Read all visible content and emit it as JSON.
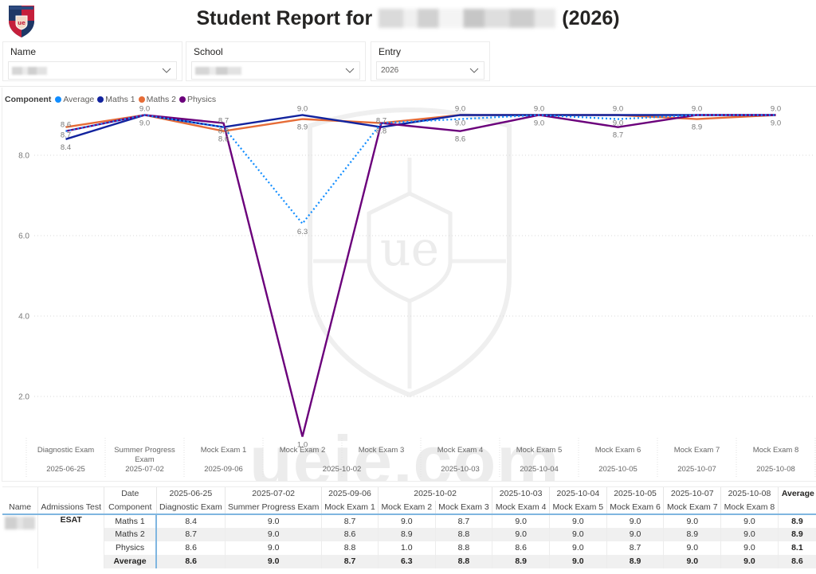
{
  "header": {
    "title_prefix": "Student Report for",
    "title_name_redacted": true,
    "title_suffix": "(2026)"
  },
  "filters": [
    {
      "label": "Name",
      "value": "",
      "redacted": true
    },
    {
      "label": "School",
      "value": "",
      "redacted": true
    },
    {
      "label": "Entry",
      "value": "2026",
      "redacted": false
    }
  ],
  "legend": {
    "title": "Component",
    "items": [
      {
        "label": "Average",
        "color": "#118DFF"
      },
      {
        "label": "Maths 1",
        "color": "#12239E"
      },
      {
        "label": "Maths 2",
        "color": "#E66C37"
      },
      {
        "label": "Physics",
        "color": "#6B007B"
      }
    ]
  },
  "chart_data": {
    "type": "line",
    "title": "",
    "xlabel": "",
    "ylabel": "",
    "legend_title": "Component",
    "legend_position": "top-left",
    "grid": true,
    "ylim": [
      1,
      9
    ],
    "y_ticks": [
      8.0,
      6.0,
      4.0,
      2.0
    ],
    "categories": [
      "Diagnostic Exam",
      "Summer Progress Exam",
      "Mock Exam 1",
      "Mock Exam 2",
      "Mock Exam 3",
      "Mock Exam 4",
      "Mock Exam 5",
      "Mock Exam 6",
      "Mock Exam 7",
      "Mock Exam 8"
    ],
    "date_groups": [
      {
        "date": "2025-06-25",
        "span": 1
      },
      {
        "date": "2025-07-02",
        "span": 1
      },
      {
        "date": "2025-09-06",
        "span": 1
      },
      {
        "date": "2025-10-02",
        "span": 2
      },
      {
        "date": "2025-10-03",
        "span": 1
      },
      {
        "date": "2025-10-04",
        "span": 1
      },
      {
        "date": "2025-10-05",
        "span": 1
      },
      {
        "date": "2025-10-07",
        "span": 1
      },
      {
        "date": "2025-10-08",
        "span": 1
      }
    ],
    "series": [
      {
        "name": "Maths 2",
        "color": "#E66C37",
        "style": "solid",
        "values": [
          8.7,
          9.0,
          8.6,
          8.9,
          8.8,
          9.0,
          9.0,
          9.0,
          8.9,
          9.0
        ]
      },
      {
        "name": "Maths 1",
        "color": "#12239E",
        "style": "solid",
        "values": [
          8.4,
          9.0,
          8.7,
          9.0,
          8.7,
          9.0,
          9.0,
          9.0,
          9.0,
          9.0
        ]
      },
      {
        "name": "Physics",
        "color": "#6B007B",
        "style": "solid",
        "values": [
          8.6,
          9.0,
          8.8,
          1.0,
          8.8,
          8.6,
          9.0,
          8.7,
          9.0,
          9.0
        ]
      },
      {
        "name": "Average",
        "color": "#118DFF",
        "style": "dotted",
        "values": [
          8.6,
          9.0,
          8.7,
          6.3,
          8.8,
          8.9,
          9.0,
          8.9,
          9.0,
          9.0
        ]
      }
    ]
  },
  "table": {
    "headers": {
      "name": "Name",
      "admissions_test": "Admissions Test",
      "date": "Date",
      "component": "Component",
      "average": "Average",
      "date_groups": [
        {
          "date": "2025-06-25",
          "span": 1
        },
        {
          "date": "2025-07-02",
          "span": 1
        },
        {
          "date": "2025-09-06",
          "span": 1
        },
        {
          "date": "2025-10-02",
          "span": 2
        },
        {
          "date": "2025-10-03",
          "span": 1
        },
        {
          "date": "2025-10-04",
          "span": 1
        },
        {
          "date": "2025-10-05",
          "span": 1
        },
        {
          "date": "2025-10-07",
          "span": 1
        },
        {
          "date": "2025-10-08",
          "span": 1
        }
      ],
      "exams": [
        "Diagnostic Exam",
        "Summer Progress Exam",
        "Mock Exam 1",
        "Mock Exam 2",
        "Mock Exam 3",
        "Mock Exam 4",
        "Mock Exam 5",
        "Mock Exam 6",
        "Mock Exam 7",
        "Mock Exam 8"
      ]
    },
    "student": {
      "name_redacted": true,
      "admissions_test": "ESAT"
    },
    "rows": [
      {
        "component": "Maths 1",
        "values": [
          "8.4",
          "9.0",
          "8.7",
          "9.0",
          "8.7",
          "9.0",
          "9.0",
          "9.0",
          "9.0",
          "9.0"
        ],
        "average": "8.9"
      },
      {
        "component": "Maths 2",
        "values": [
          "8.7",
          "9.0",
          "8.6",
          "8.9",
          "8.8",
          "9.0",
          "9.0",
          "9.0",
          "8.9",
          "9.0"
        ],
        "average": "8.9"
      },
      {
        "component": "Physics",
        "values": [
          "8.6",
          "9.0",
          "8.8",
          "1.0",
          "8.8",
          "8.6",
          "9.0",
          "8.7",
          "9.0",
          "9.0"
        ],
        "average": "8.1"
      },
      {
        "component": "Average",
        "values": [
          "8.6",
          "9.0",
          "8.7",
          "6.3",
          "8.8",
          "8.9",
          "9.0",
          "8.9",
          "9.0",
          "9.0"
        ],
        "average": "8.6"
      }
    ]
  },
  "watermark": {
    "text": "ueie.com"
  }
}
